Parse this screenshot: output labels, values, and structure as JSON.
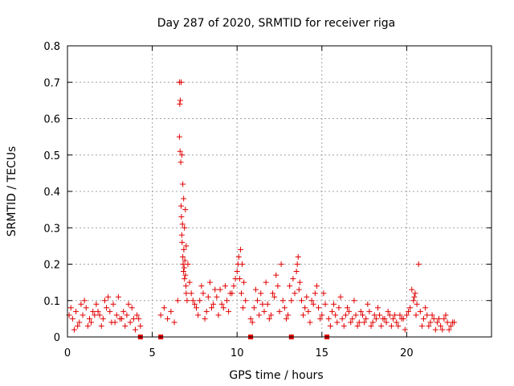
{
  "chart_data": {
    "type": "scatter",
    "title": "Day 287 of 2020, SRMTID for receiver riga",
    "xlabel": "GPS time / hours",
    "ylabel": "SRMTID / TECUs",
    "xlim": [
      0,
      25
    ],
    "ylim": [
      0,
      0.8
    ],
    "xticks": [
      0,
      5,
      10,
      15,
      20
    ],
    "xtick_labels": [
      "0",
      "5",
      "10",
      "15",
      "20"
    ],
    "yticks": [
      0,
      0.1,
      0.2,
      0.3,
      0.4,
      0.5,
      0.6,
      0.7,
      0.8
    ],
    "ytick_labels": [
      "0",
      "0.1",
      "0.2",
      "0.3",
      "0.4",
      "0.5",
      "0.6",
      "0.7",
      "0.8"
    ],
    "grid": true,
    "marker": "plus",
    "series_color": "#e00000",
    "gap_markers_x": [
      4.3,
      5.5,
      10.8,
      13.2,
      15.3
    ],
    "series": [
      {
        "name": "SRMTID",
        "x": [
          0.1,
          0.3,
          0.5,
          0.7,
          0.9,
          1.1,
          1.3,
          1.5,
          1.7,
          1.9,
          2.1,
          2.3,
          2.5,
          2.7,
          2.9,
          3.1,
          3.3,
          3.5,
          3.7,
          3.9,
          4.1,
          4.3,
          0.2,
          0.6,
          1.0,
          1.4,
          1.8,
          2.2,
          2.6,
          3.0,
          3.4,
          3.8,
          4.2,
          0.4,
          0.8,
          1.2,
          1.6,
          2.0,
          2.4,
          2.8,
          3.2,
          3.6,
          4.0,
          5.5,
          5.7,
          5.9,
          6.1,
          6.3,
          6.5,
          6.6,
          6.65,
          6.7,
          6.75,
          6.8,
          6.85,
          6.9,
          6.95,
          7.0,
          7.1,
          7.2,
          7.3,
          7.4,
          7.5,
          6.6,
          6.62,
          6.64,
          6.68,
          6.7,
          6.72,
          6.74,
          6.76,
          6.78,
          6.8,
          6.82,
          6.84,
          6.86,
          6.88,
          6.9,
          6.92,
          6.95,
          6.98,
          7.0,
          7.05,
          7.6,
          7.8,
          8.0,
          8.2,
          8.4,
          8.6,
          8.8,
          9.0,
          9.2,
          9.4,
          9.6,
          9.8,
          10.0,
          10.1,
          10.2,
          10.3,
          10.4,
          10.5,
          7.7,
          7.9,
          8.1,
          8.3,
          8.5,
          8.7,
          8.9,
          9.1,
          9.3,
          9.5,
          9.7,
          9.9,
          10.05,
          10.15,
          10.25,
          10.35,
          10.8,
          11.0,
          11.2,
          11.4,
          11.6,
          11.8,
          12.0,
          12.2,
          12.4,
          12.6,
          12.8,
          13.0,
          13.2,
          13.4,
          13.5,
          13.6,
          13.7,
          13.8,
          14.0,
          14.2,
          14.4,
          14.6,
          14.8,
          15.0,
          15.2,
          10.9,
          11.1,
          11.3,
          11.5,
          11.7,
          11.9,
          12.1,
          12.3,
          12.5,
          12.7,
          12.9,
          13.1,
          13.3,
          13.55,
          13.65,
          13.9,
          14.1,
          14.3,
          14.5,
          14.7,
          14.9,
          15.1,
          15.4,
          15.6,
          15.8,
          16.0,
          16.2,
          16.4,
          16.6,
          16.8,
          17.0,
          17.2,
          17.4,
          17.6,
          17.8,
          18.0,
          18.2,
          18.4,
          18.6,
          18.8,
          19.0,
          19.2,
          19.4,
          19.6,
          19.8,
          20.0,
          20.2,
          20.4,
          20.5,
          20.6,
          20.8,
          21.0,
          21.2,
          21.4,
          21.6,
          21.8,
          22.0,
          22.2,
          22.4,
          22.6,
          22.8,
          15.5,
          15.7,
          15.9,
          16.1,
          16.3,
          16.5,
          16.7,
          16.9,
          17.1,
          17.3,
          17.5,
          17.7,
          17.9,
          18.1,
          18.3,
          18.5,
          18.7,
          18.9,
          19.1,
          19.3,
          19.5,
          19.7,
          19.9,
          20.1,
          20.3,
          20.45,
          20.55,
          20.7,
          20.9,
          21.1,
          21.3,
          21.5,
          21.7,
          21.9,
          22.1,
          22.3,
          22.5,
          22.7
        ],
        "y": [
          0.06,
          0.05,
          0.07,
          0.04,
          0.06,
          0.08,
          0.05,
          0.07,
          0.09,
          0.06,
          0.05,
          0.08,
          0.07,
          0.09,
          0.06,
          0.05,
          0.07,
          0.06,
          0.04,
          0.05,
          0.06,
          0.03,
          0.08,
          0.03,
          0.1,
          0.04,
          0.07,
          0.1,
          0.04,
          0.11,
          0.03,
          0.08,
          0.05,
          0.02,
          0.09,
          0.03,
          0.06,
          0.03,
          0.11,
          0.04,
          0.05,
          0.09,
          0.02,
          0.06,
          0.08,
          0.05,
          0.07,
          0.04,
          0.1,
          0.55,
          0.65,
          0.7,
          0.5,
          0.42,
          0.38,
          0.3,
          0.35,
          0.25,
          0.2,
          0.15,
          0.12,
          0.1,
          0.09,
          0.7,
          0.64,
          0.51,
          0.48,
          0.36,
          0.33,
          0.28,
          0.26,
          0.31,
          0.22,
          0.2,
          0.18,
          0.24,
          0.19,
          0.16,
          0.21,
          0.17,
          0.14,
          0.12,
          0.1,
          0.08,
          0.1,
          0.12,
          0.07,
          0.15,
          0.09,
          0.11,
          0.13,
          0.08,
          0.1,
          0.12,
          0.14,
          0.18,
          0.22,
          0.24,
          0.2,
          0.15,
          0.1,
          0.06,
          0.14,
          0.05,
          0.11,
          0.08,
          0.13,
          0.06,
          0.09,
          0.14,
          0.07,
          0.12,
          0.16,
          0.2,
          0.16,
          0.12,
          0.08,
          0.05,
          0.08,
          0.1,
          0.12,
          0.07,
          0.09,
          0.06,
          0.11,
          0.14,
          0.2,
          0.08,
          0.06,
          0.1,
          0.12,
          0.18,
          0.22,
          0.15,
          0.1,
          0.08,
          0.07,
          0.1,
          0.12,
          0.08,
          0.06,
          0.09,
          0.04,
          0.13,
          0.06,
          0.09,
          0.15,
          0.05,
          0.12,
          0.17,
          0.07,
          0.1,
          0.05,
          0.14,
          0.16,
          0.2,
          0.13,
          0.06,
          0.11,
          0.04,
          0.09,
          0.14,
          0.05,
          0.12,
          0.05,
          0.07,
          0.06,
          0.08,
          0.05,
          0.06,
          0.07,
          0.05,
          0.06,
          0.04,
          0.06,
          0.05,
          0.07,
          0.04,
          0.05,
          0.06,
          0.05,
          0.04,
          0.06,
          0.05,
          0.04,
          0.06,
          0.05,
          0.06,
          0.08,
          0.1,
          0.12,
          0.09,
          0.07,
          0.05,
          0.06,
          0.04,
          0.05,
          0.04,
          0.03,
          0.05,
          0.04,
          0.03,
          0.04,
          0.03,
          0.09,
          0.04,
          0.11,
          0.03,
          0.08,
          0.04,
          0.1,
          0.03,
          0.07,
          0.04,
          0.09,
          0.03,
          0.06,
          0.08,
          0.03,
          0.05,
          0.07,
          0.03,
          0.06,
          0.03,
          0.05,
          0.02,
          0.07,
          0.13,
          0.11,
          0.06,
          0.2,
          0.03,
          0.08,
          0.03,
          0.06,
          0.02,
          0.05,
          0.02,
          0.06,
          0.02,
          0.04
        ]
      }
    ]
  }
}
